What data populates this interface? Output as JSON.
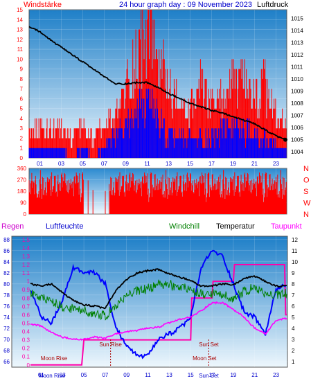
{
  "header": {
    "left_label": "Windstärke",
    "title": "24 hour graph day : 09 November 2023",
    "right_label": "Luftdruck"
  },
  "legend": {
    "regen": "Regen",
    "luftfeuchte": "Luftfeuchte",
    "windchill": "Windchill",
    "temperatur": "Temperatur",
    "taupunkt": "Taupunkt"
  },
  "colors": {
    "wind_gust": "#ff0000",
    "wind_avg": "#0000ff",
    "pressure": "#000000",
    "direction": "#ff0000",
    "humidity": "#0000ff",
    "windchill": "#008000",
    "temperature": "#000000",
    "dewpoint": "#ff00ff",
    "rain": "#ff00aa",
    "sky_top": "#1e7fc8",
    "sky_bottom": "#e8f4fc"
  },
  "chart_data": [
    {
      "type": "line",
      "name": "wind-pressure",
      "x_ticks": [
        "01",
        "03",
        "05",
        "07",
        "09",
        "11",
        "13",
        "15",
        "17",
        "19",
        "21",
        "23"
      ],
      "y_left_ticks": [
        0,
        1,
        2,
        3,
        4,
        5,
        6,
        7,
        8,
        9,
        10,
        11,
        12,
        13,
        14,
        15
      ],
      "y_right_ticks": [
        1004,
        1005,
        1006,
        1007,
        1008,
        1009,
        1010,
        1011,
        1012,
        1013,
        1014,
        1015
      ],
      "ylim_left": [
        0,
        15
      ],
      "ylim_right": [
        1003.5,
        1015.7
      ],
      "pressure": {
        "x": [
          0,
          1,
          2,
          3,
          4,
          5,
          6,
          7,
          8,
          9,
          10,
          11,
          12,
          13,
          14,
          15,
          16,
          17,
          18,
          19,
          20,
          21,
          22,
          23,
          24
        ],
        "y": [
          1014.3,
          1013.9,
          1013.2,
          1012.6,
          1012.0,
          1011.4,
          1010.8,
          1010.2,
          1009.6,
          1009.6,
          1009.7,
          1009.7,
          1009.3,
          1008.8,
          1008.4,
          1008.0,
          1007.7,
          1007.4,
          1007.2,
          1006.9,
          1006.6,
          1006.3,
          1005.8,
          1005.3,
          1005.0
        ]
      },
      "gust": {
        "x": [
          0,
          1,
          2,
          3,
          4,
          5,
          6,
          7,
          8,
          9,
          10,
          11,
          12,
          13,
          14,
          15,
          16,
          17,
          18,
          19,
          20,
          21,
          22,
          23,
          24
        ],
        "y": [
          3,
          3,
          3,
          3,
          2,
          3,
          2,
          3,
          4,
          7,
          10,
          14,
          10,
          7,
          5,
          5,
          7,
          5,
          6,
          8,
          7,
          6,
          7,
          4,
          3
        ]
      },
      "average": {
        "x": [
          0,
          1,
          2,
          3,
          4,
          5,
          6,
          7,
          8,
          9,
          10,
          11,
          12,
          13,
          14,
          15,
          16,
          17,
          18,
          19,
          20,
          21,
          22,
          23,
          24
        ],
        "y": [
          1,
          1,
          1,
          1,
          0,
          1,
          0,
          1,
          2,
          3,
          5,
          5,
          4,
          2,
          2,
          2,
          2,
          2,
          3,
          3,
          3,
          2,
          2,
          1,
          1
        ]
      }
    },
    {
      "type": "line",
      "name": "wind-direction",
      "y_ticks": [
        0,
        90,
        180,
        270,
        360
      ],
      "ylim": [
        0,
        360
      ],
      "right_labels": [
        "N",
        "W",
        "S",
        "O",
        "N"
      ],
      "calm_period_hours": [
        5.0,
        7.5
      ],
      "typical_range": [
        120,
        330
      ]
    },
    {
      "type": "line",
      "name": "temperature-humidity",
      "x_ticks": [
        "01",
        "03",
        "05",
        "07",
        "09",
        "11",
        "13",
        "15",
        "17",
        "19",
        "21",
        "23"
      ],
      "rain_ticks": [
        0,
        0.1,
        0.2,
        0.3,
        0.4,
        0.5,
        0.6,
        0.7,
        0.8,
        0.9,
        1,
        1.1,
        1.2,
        1.3,
        1.4,
        1.5
      ],
      "humidity_ticks": [
        66,
        68,
        70,
        72,
        74,
        76,
        78,
        80,
        82,
        84,
        86,
        88
      ],
      "temp_ticks": [
        1,
        2,
        3,
        4,
        5,
        6,
        7,
        8,
        9,
        10,
        11,
        12
      ],
      "ylim_temp": [
        0.5,
        12.3
      ],
      "annotations": [
        {
          "text": "Moon Rise",
          "hour": 2.2,
          "row": "low"
        },
        {
          "text": "Sun Rise",
          "hour": 7.5,
          "row": "mid"
        },
        {
          "text": "Sun Set",
          "hour": 16.7,
          "row": "mid"
        },
        {
          "text": "Moon Set",
          "hour": 16.3,
          "row": "low"
        },
        {
          "text": "Moon Rise",
          "hour": 2.0,
          "row": "axis"
        },
        {
          "text": "Sun Set",
          "hour": 16.7,
          "row": "axis"
        }
      ],
      "temperature": {
        "x": [
          0,
          1,
          2,
          3,
          4,
          5,
          6,
          7,
          8,
          9,
          10,
          11,
          12,
          13,
          14,
          15,
          16,
          17,
          18,
          19,
          20,
          21,
          22,
          23,
          24
        ],
        "y": [
          8.0,
          7.8,
          8.0,
          7.2,
          6.5,
          6.1,
          6.0,
          5.8,
          7.4,
          8.4,
          9.0,
          9.2,
          9.3,
          8.9,
          8.6,
          8.3,
          7.8,
          7.8,
          8.0,
          7.9,
          8.5,
          8.7,
          8.2,
          7.8,
          7.8
        ]
      },
      "windchill": {
        "x": [
          0,
          1,
          2,
          3,
          4,
          5,
          6,
          7,
          8,
          9,
          10,
          11,
          12,
          13,
          14,
          15,
          16,
          17,
          18,
          19,
          20,
          21,
          22,
          23,
          24
        ],
        "y": [
          7.8,
          7.2,
          7.0,
          6.4,
          6.2,
          6.1,
          5.8,
          5.6,
          6.5,
          7.5,
          7.8,
          8.0,
          8.5,
          8.4,
          8.2,
          8.0,
          7.6,
          7.6,
          7.5,
          7.2,
          7.8,
          8.2,
          7.6,
          7.4,
          7.6
        ]
      },
      "dewpoint": {
        "x": [
          0,
          1,
          2,
          3,
          4,
          5,
          6,
          7,
          8,
          9,
          10,
          11,
          12,
          13,
          14,
          15,
          16,
          17,
          18,
          19,
          20,
          21,
          22,
          23,
          24
        ],
        "y": [
          4.4,
          4.2,
          3.6,
          3.2,
          3.0,
          3.0,
          3.2,
          3.1,
          3.5,
          3.7,
          3.8,
          4.0,
          4.1,
          4.5,
          4.8,
          5.0,
          5.6,
          6.3,
          6.3,
          5.7,
          5.0,
          4.0,
          3.5,
          4.7,
          4.9
        ]
      },
      "humidity": {
        "x": [
          0,
          1,
          2,
          3,
          4,
          5,
          6,
          7,
          8,
          9,
          10,
          11,
          12,
          13,
          14,
          15,
          16,
          17,
          18,
          19,
          20,
          21,
          22,
          23,
          24
        ],
        "y": [
          79,
          74,
          73,
          77,
          83,
          82,
          82,
          80,
          72,
          69,
          67,
          67,
          70,
          71,
          72,
          74,
          83,
          86,
          85,
          80,
          75,
          74,
          71,
          79,
          80
        ]
      },
      "rain": {
        "x": [
          0,
          1,
          2,
          4.8,
          5,
          8,
          15,
          15.1,
          17,
          17.1,
          19,
          19.1,
          23.8,
          23.9,
          24
        ],
        "y": [
          0,
          0,
          0,
          0,
          0.3,
          0.3,
          0.3,
          0.8,
          0.8,
          1.0,
          1.0,
          1.2,
          1.2,
          0.6,
          0.6
        ]
      }
    }
  ]
}
